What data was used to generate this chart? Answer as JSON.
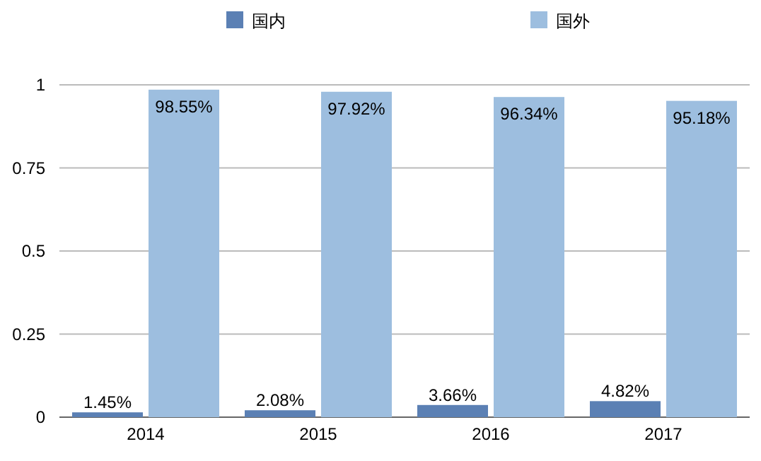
{
  "chart_data": {
    "type": "bar",
    "categories": [
      "2014",
      "2015",
      "2016",
      "2017"
    ],
    "series": [
      {
        "name": "国内",
        "color": "#5b80b4",
        "values": [
          0.0145,
          0.0208,
          0.0366,
          0.0482
        ],
        "value_labels": [
          "1.45%",
          "2.08%",
          "3.66%",
          "4.82%"
        ]
      },
      {
        "name": "国外",
        "color": "#9dbedf",
        "values": [
          0.9855,
          0.9792,
          0.9634,
          0.9518
        ],
        "value_labels": [
          "98.55%",
          "97.92%",
          "96.34%",
          "95.18%"
        ]
      }
    ],
    "ylim": [
      0,
      1
    ],
    "yticks": [
      0,
      {
        "value": 0.25,
        "label": "0.25"
      },
      {
        "value": 0.5,
        "label": "0.5"
      },
      {
        "value": 0.75,
        "label": "0.75"
      },
      1
    ],
    "grid": "y",
    "legend": "top"
  }
}
